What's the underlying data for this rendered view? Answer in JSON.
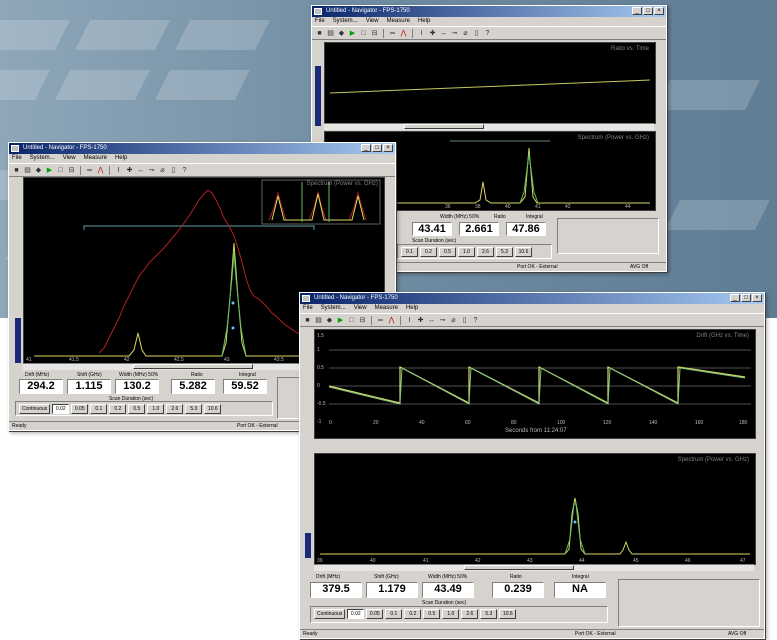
{
  "colors": {
    "bg_top": "#6d8aa0",
    "bg_bottom": "#ffffff",
    "plot_bg": "#000000",
    "trace_yellow": "#d8d860",
    "trace_red": "#b02020",
    "trace_green": "#60c060",
    "titlebar": "#0a246a"
  },
  "icons": [
    "save-icon",
    "open-icon",
    "run-icon",
    "play-icon",
    "frame-icon",
    "split-icon",
    "meter-icon",
    "peak-icon",
    "cursor-icon",
    "crosshair-icon",
    "arrows-icon",
    "link-icon",
    "erase-icon",
    "doc-icon",
    "help-icon"
  ],
  "window_controls": {
    "minimize": "_",
    "maximize": "□",
    "close": "×"
  },
  "windows": {
    "top": {
      "title": "Untitled - Navigator - FPS-1750",
      "menu": [
        "File",
        "System...",
        "View",
        "Measure",
        "Help"
      ],
      "upper_plot_title": "Ratio vs. Time",
      "lower_plot_title": "Spectrum (Power vs. GHz)",
      "lower_ticks": [
        "36",
        "38",
        "40",
        "41",
        "42",
        "44"
      ],
      "labels": {
        "width": "Width (MHz)  50%",
        "ratio": "Ratio",
        "integral": "Integral"
      },
      "values": {
        "width": "43.41",
        "ratio": "2.661",
        "integral": "47.86"
      },
      "scan_label": "Scan Duration (sec)",
      "scan_buttons": [
        "0.1",
        "0.2",
        "0.5",
        "1.0",
        "2.6",
        "5.3",
        "10.6"
      ],
      "status_port": "Port OK - External",
      "status_avg": "AVG Off"
    },
    "left": {
      "title": "Untitled - Navigator - FPS-1750",
      "menu": [
        "File",
        "System...",
        "View",
        "Measure",
        "Help"
      ],
      "plot_title": "Spectrum (Power vs. GHz)",
      "ticks": [
        "41",
        "41.5",
        "42",
        "42.5",
        "43",
        "43.5",
        "44"
      ],
      "labels": {
        "drift": "Drift (MHz)",
        "shift": "Shift (GHz)",
        "width": "Width (MHz)   50%",
        "ratio": "Ratio",
        "integral": "Integral"
      },
      "values": {
        "drift": "294.2",
        "shift": "1.115",
        "width": "130.2",
        "ratio": "5.282",
        "integral": "59.52"
      },
      "scan_label": "Scan Duration (sec)",
      "scan_buttons": [
        "Continuous",
        "0.02",
        "0.05",
        "0.1",
        "0.2",
        "0.5",
        "1.0",
        "2.6",
        "5.3",
        "10.6"
      ],
      "status_ready": "Ready",
      "status_port": "Port OK - External"
    },
    "bottom": {
      "title": "Untitled - Navigator - FPS-1750",
      "menu": [
        "File",
        "System...",
        "View",
        "Measure",
        "Help"
      ],
      "upper_plot_title": "Drift (GHz vs. Time)",
      "upper_y_ticks": [
        "1.5",
        "1",
        "0.5",
        "0",
        "-0.5",
        "-1"
      ],
      "upper_x_ticks": [
        "0",
        "20",
        "40",
        "60",
        "80",
        "100",
        "120",
        "140",
        "160",
        "180"
      ],
      "upper_xlabel": "Seconds from 11:24:07",
      "lower_plot_title": "Spectrum (Power vs. GHz)",
      "lower_ticks": [
        "39",
        "40",
        "41",
        "42",
        "43",
        "44",
        "45",
        "46",
        "47"
      ],
      "labels": {
        "drift": "Drift (MHz)",
        "shift": "Shift (GHz)",
        "width": "Width (MHz)   50%",
        "ratio": "Ratio",
        "integral": "Integral"
      },
      "values": {
        "drift": "379.5",
        "shift": "1.179",
        "width": "43.49",
        "ratio": "0.239",
        "integral": "NA"
      },
      "scan_label": "Scan Duration (sec)",
      "scan_buttons": [
        "Continuous",
        "0.02",
        "0.05",
        "0.1",
        "0.2",
        "0.5",
        "1.0",
        "2.6",
        "5.3",
        "10.6"
      ],
      "status_ready": "Ready",
      "status_port": "Port OK - External",
      "status_avg": "AVG Off"
    }
  }
}
